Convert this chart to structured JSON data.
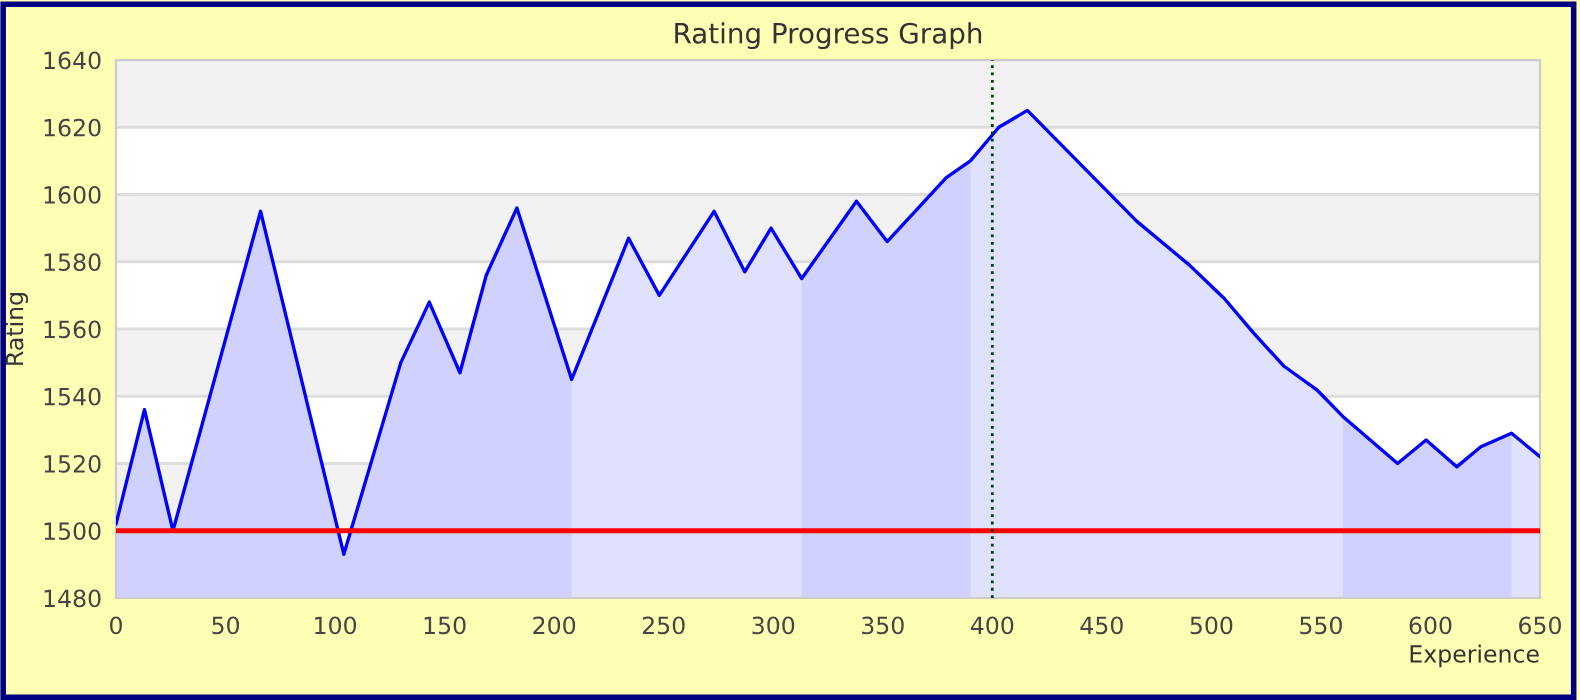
{
  "chart_data": {
    "type": "area",
    "title": "Rating Progress Graph",
    "xlabel": "Experience",
    "ylabel": "Rating",
    "x": [
      0,
      13,
      26,
      66,
      104,
      130,
      143,
      157,
      169,
      183,
      208,
      234,
      248,
      273,
      287,
      299,
      313,
      338,
      352,
      379,
      390,
      403,
      416,
      466,
      490,
      506,
      519,
      533,
      548,
      560,
      585,
      598,
      612,
      623,
      637,
      650
    ],
    "series": [
      {
        "color": "#0000ff",
        "values": [
          1502,
          1536,
          1500,
          1595,
          1493,
          1550,
          1568,
          1547,
          1576,
          1596,
          1545,
          1587,
          1570,
          1595,
          1577,
          1590,
          1575,
          1598,
          1586,
          1605,
          1610,
          1620,
          1625,
          1592,
          1579,
          1569,
          1559,
          1549,
          1542,
          1534,
          1520,
          1527,
          1519,
          1525,
          1529,
          1522
        ]
      }
    ],
    "xlim": [
      0,
      650
    ],
    "ylim": [
      1480,
      1640
    ],
    "xticks": [
      0,
      50,
      100,
      150,
      200,
      250,
      300,
      350,
      400,
      450,
      500,
      550,
      600,
      650
    ],
    "yticks": [
      1480,
      1500,
      1520,
      1540,
      1560,
      1580,
      1600,
      1620,
      1640
    ],
    "grid": "y",
    "marker": "none",
    "line_style": "solid",
    "ref_lines": [
      {
        "axis": "y",
        "value": 1500,
        "color": "#ff0000",
        "line_style": "solid"
      },
      {
        "axis": "x",
        "value": 400,
        "color": "#004400",
        "line_style": "dotted"
      }
    ],
    "bands": [
      {
        "axis": "x",
        "from": 0,
        "to": 208,
        "color": "#eeeeff"
      },
      {
        "axis": "x",
        "from": 313,
        "to": 390,
        "color": "#eeeeff"
      },
      {
        "axis": "x",
        "from": 560,
        "to": 637,
        "color": "#eeeeff"
      }
    ]
  }
}
